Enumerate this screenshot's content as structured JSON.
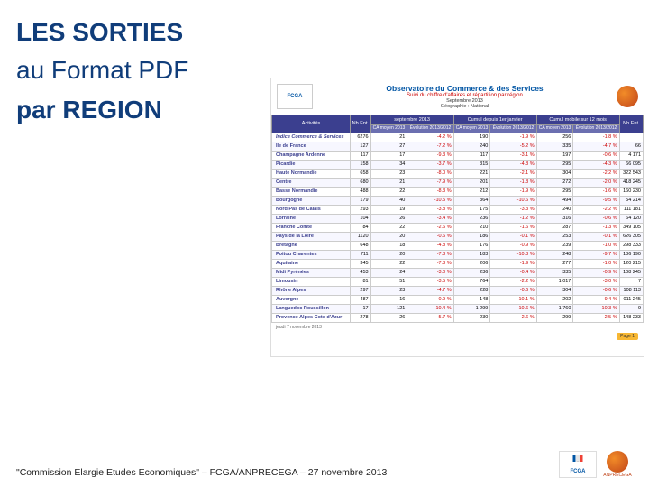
{
  "titles": {
    "h1": "LES SORTIES",
    "h2": "au Format PDF",
    "h3": "par REGION"
  },
  "title_font_size": 28,
  "title_color": "#103d7a",
  "table_header": {
    "title": "Observatoire du Commerce & des Services",
    "subtitle": "Suivi du chiffre d'affaires et répartition par région",
    "period": "Septembre 2013",
    "geo": "Géographie : National",
    "logo_text": "FCGA"
  },
  "table": {
    "columns": [
      "Activités",
      "Nb Ent.",
      "septembre 2013",
      "",
      "Cumul depuis 1er janvier",
      "",
      "Cumul mobile sur 12 mois",
      "",
      "Nb Ent."
    ],
    "subcolumns": [
      "",
      "",
      "CA moyen 2013",
      "Évolution 2013/2012",
      "CA moyen 2013",
      "Évolution 2013/2012",
      "CA moyen 2013",
      "Évolution 2013/2012",
      ""
    ],
    "indice_label": "Indice Commerce & Services",
    "indice_values": [
      "6276",
      "21",
      "-4.2 %",
      "190",
      "-1.9 %",
      "256",
      "-1.8 %",
      ""
    ],
    "rows": [
      {
        "label": "Ile de France",
        "vals": [
          "127",
          "27",
          "-7.2 %",
          "240",
          "-5.2 %",
          "335",
          "-4.7 %",
          "66"
        ]
      },
      {
        "label": "Champagne Ardenne",
        "vals": [
          "117",
          "17",
          "-9.3 %",
          "117",
          "-3.1 %",
          "197",
          "-0.6 %",
          "4 171"
        ]
      },
      {
        "label": "Picardie",
        "vals": [
          "158",
          "34",
          "-3.7 %",
          "315",
          "-4.8 %",
          "295",
          "-4.3 %",
          "66 095"
        ]
      },
      {
        "label": "Haute Normandie",
        "vals": [
          "658",
          "23",
          "-8.0 %",
          "221",
          "-2.1 %",
          "304",
          "-2.2 %",
          "322 543"
        ]
      },
      {
        "label": "Centre",
        "vals": [
          "680",
          "21",
          "-7.9 %",
          "201",
          "-1.8 %",
          "272",
          "-2.0 %",
          "418 245"
        ]
      },
      {
        "label": "Basse Normandie",
        "vals": [
          "488",
          "22",
          "-8.3 %",
          "212",
          "-1.9 %",
          "295",
          "-1.6 %",
          "160 230"
        ]
      },
      {
        "label": "Bourgogne",
        "vals": [
          "179",
          "40",
          "-10.5 %",
          "364",
          "-10.6 %",
          "494",
          "-9.5 %",
          "54 214"
        ]
      },
      {
        "label": "Nord Pas de Calais",
        "vals": [
          "293",
          "19",
          "-3.8 %",
          "175",
          "-3.3 %",
          "240",
          "-2.2 %",
          "111 181"
        ]
      },
      {
        "label": "Lorraine",
        "vals": [
          "104",
          "26",
          "-3.4 %",
          "236",
          "-1.2 %",
          "316",
          "-0.6 %",
          "64 120"
        ]
      },
      {
        "label": "Franche Comté",
        "vals": [
          "84",
          "22",
          "-2.6 %",
          "210",
          "-1.6 %",
          "287",
          "-1.3 %",
          "349 105"
        ]
      },
      {
        "label": "Pays de la Loire",
        "vals": [
          "1120",
          "20",
          "-0.6 %",
          "186",
          "-0.1 %",
          "253",
          "-0.1 %",
          "626 305"
        ]
      },
      {
        "label": "Bretagne",
        "vals": [
          "648",
          "18",
          "-4.8 %",
          "176",
          "-0.9 %",
          "239",
          "-1.0 %",
          "298 333"
        ]
      },
      {
        "label": "Poitou Charentes",
        "vals": [
          "711",
          "20",
          "-7.3 %",
          "183",
          "-10.3 %",
          "248",
          "-9.7 %",
          "186 190"
        ]
      },
      {
        "label": "Aquitaine",
        "vals": [
          "345",
          "22",
          "-7.8 %",
          "206",
          "-1.9 %",
          "277",
          "-1.0 %",
          "120 215"
        ]
      },
      {
        "label": "Midi Pyrénées",
        "vals": [
          "453",
          "24",
          "-3.0 %",
          "236",
          "-0.4 %",
          "335",
          "-0.9 %",
          "108 245"
        ]
      },
      {
        "label": "Limousin",
        "vals": [
          "81",
          "51",
          "-3.5 %",
          "764",
          "-2.2 %",
          "1 017",
          "-3.0 %",
          "7"
        ]
      },
      {
        "label": "Rhône Alpes",
        "vals": [
          "297",
          "23",
          "-4.7 %",
          "228",
          "-0.6 %",
          "304",
          "-0.6 %",
          "108 113"
        ]
      },
      {
        "label": "Auvergne",
        "vals": [
          "487",
          "16",
          "-0.9 %",
          "148",
          "-10.1 %",
          "202",
          "-9.4 %",
          "011 245"
        ]
      },
      {
        "label": "Languedoc Roussillon",
        "vals": [
          "17",
          "121",
          "-10.4 %",
          "1 299",
          "-10.6 %",
          "1 760",
          "-10.3 %",
          "9"
        ]
      },
      {
        "label": "Provence Alpes Cote d'Azur",
        "vals": [
          "278",
          "26",
          "-5.7 %",
          "230",
          "-2.6 %",
          "299",
          "-2.5 %",
          "148 233"
        ]
      }
    ],
    "footer_date": "jeudi 7 novembre 2013",
    "page_badge": "Page 1"
  },
  "footer": {
    "text": "\"Commission Elargie Etudes Economiques\" – FCGA/ANPRECEGA – 27 novembre 2013",
    "logo_anpre_label": "ANPRECEGA"
  },
  "colors": {
    "red": "#c00000",
    "navy": "#3b3f8f",
    "orange": "#e8651a"
  }
}
